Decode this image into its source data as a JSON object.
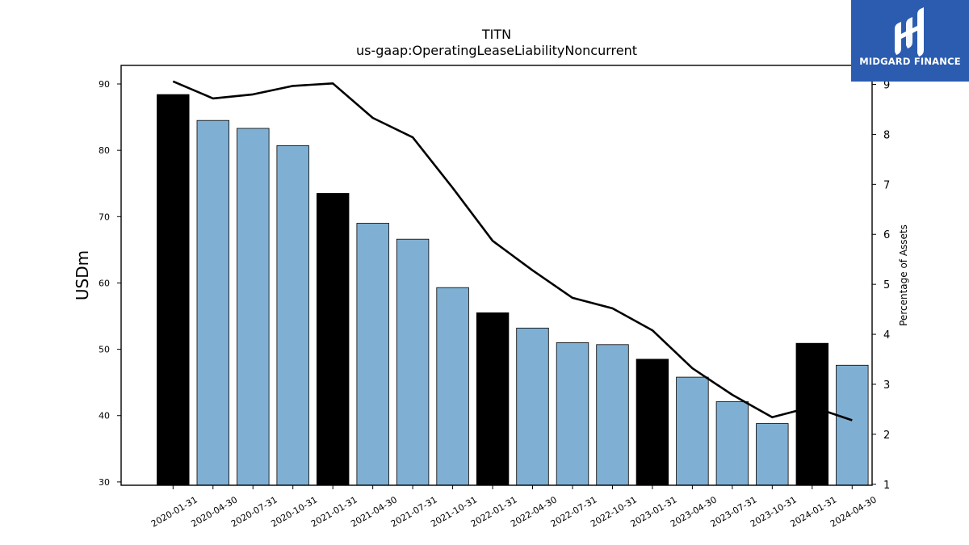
{
  "chart_data": {
    "type": "bar",
    "title": "TITN",
    "subtitle": "us-gaap:OperatingLeaseLiabilityNoncurrent",
    "ylabel": "USDm",
    "y2label": "Percentage of Assets",
    "ylim": [
      29.5,
      92.8
    ],
    "y2lim": [
      0.98,
      9.38
    ],
    "yticks": [
      30,
      40,
      50,
      60,
      70,
      80,
      90
    ],
    "y2ticks": [
      1,
      2,
      3,
      4,
      5,
      6,
      7,
      8,
      9
    ],
    "categories": [
      "2020-01-31",
      "2020-04-30",
      "2020-07-31",
      "2020-10-31",
      "2021-01-31",
      "2021-04-30",
      "2021-07-31",
      "2021-10-31",
      "2022-01-31",
      "2022-04-30",
      "2022-07-31",
      "2022-10-31",
      "2023-01-31",
      "2023-04-30",
      "2023-07-31",
      "2023-10-31",
      "2024-01-31",
      "2024-04-30"
    ],
    "series": [
      {
        "kind": "bar",
        "values": [
          88.4,
          84.5,
          83.3,
          80.7,
          73.5,
          69.0,
          66.6,
          59.3,
          55.5,
          53.2,
          51.0,
          50.7,
          48.5,
          45.8,
          42.1,
          38.8,
          50.9,
          47.6
        ],
        "colors": [
          "#000000",
          "#7fb0d3",
          "#7fb0d3",
          "#7fb0d3",
          "#000000",
          "#7fb0d3",
          "#7fb0d3",
          "#7fb0d3",
          "#000000",
          "#7fb0d3",
          "#7fb0d3",
          "#7fb0d3",
          "#000000",
          "#7fb0d3",
          "#7fb0d3",
          "#7fb0d3",
          "#000000",
          "#7fb0d3"
        ]
      },
      {
        "kind": "line",
        "axis": "right",
        "color": "#000000",
        "values": [
          9.06,
          8.72,
          8.8,
          8.97,
          9.02,
          8.33,
          7.94,
          6.93,
          5.87,
          5.28,
          4.73,
          4.52,
          4.08,
          3.32,
          2.79,
          2.34,
          2.55,
          2.28
        ]
      }
    ],
    "grid": false,
    "legend": "none"
  },
  "logo": {
    "text": "MIDGARD FINANCE",
    "background": "#2b5cb0"
  }
}
